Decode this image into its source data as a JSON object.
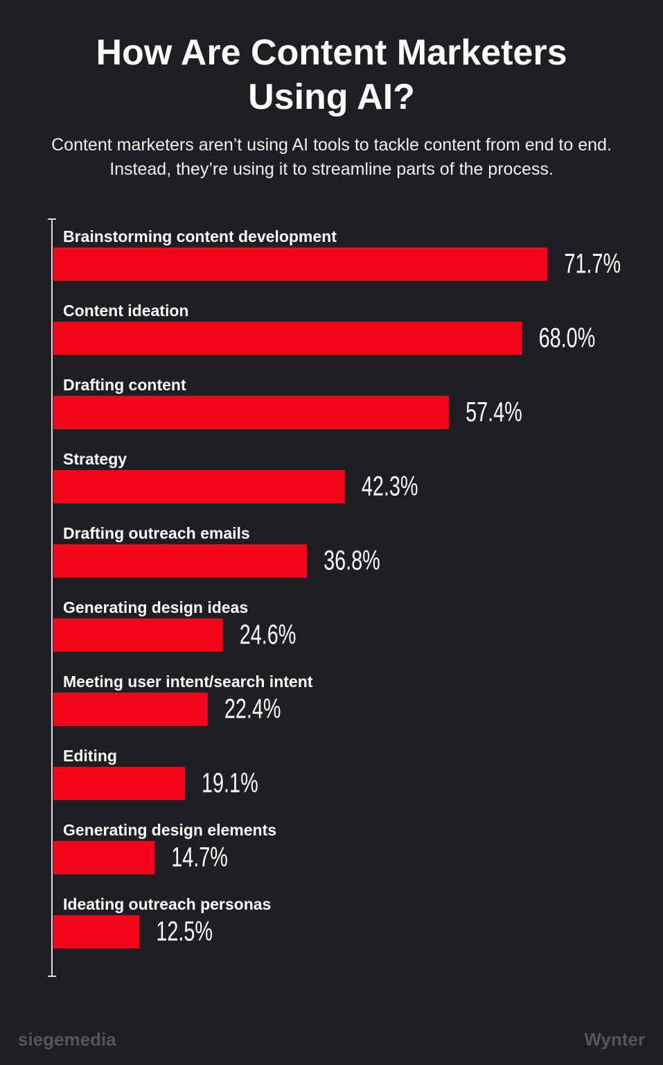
{
  "chart_data": {
    "type": "hbar",
    "title": "How Are Content Marketers Using AI?",
    "subtitle": "Content marketers aren’t using AI tools to tackle content from end to end. Instead, they’re using it to streamline parts of the process.",
    "categories": [
      "Brainstorming content development",
      "Content ideation",
      "Drafting content",
      "Strategy",
      "Drafting outreach emails",
      "Generating design ideas",
      "Meeting user intent/search intent",
      "Editing",
      "Generating design elements",
      "Ideating outreach personas"
    ],
    "values": [
      71.7,
      68.0,
      57.4,
      42.3,
      36.8,
      24.6,
      22.4,
      19.1,
      14.7,
      12.5
    ],
    "value_labels": [
      "71.7%",
      "68.0%",
      "57.4%",
      "42.3%",
      "36.8%",
      "24.6%",
      "22.4%",
      "19.1%",
      "14.7%",
      "12.5%"
    ],
    "color": "#f5051b",
    "xlim": [
      0,
      80
    ]
  },
  "logos": {
    "left": "siegemedia",
    "right": "Wynter"
  }
}
